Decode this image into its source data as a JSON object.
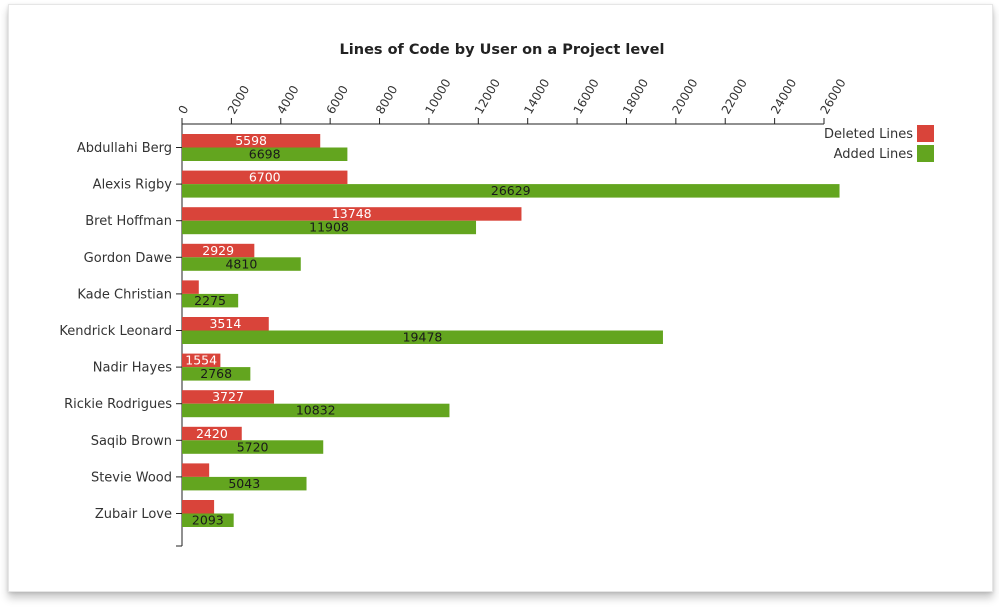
{
  "chart_data": {
    "type": "bar",
    "orientation": "horizontal",
    "title": "Lines of Code by User on a Project level",
    "x_axis_position": "top",
    "xlim": [
      0,
      26000
    ],
    "xticks": [
      0,
      2000,
      4000,
      6000,
      8000,
      10000,
      12000,
      14000,
      16000,
      18000,
      20000,
      22000,
      24000,
      26000
    ],
    "grid": false,
    "legend_position": "top-right",
    "categories": [
      "Abdullahi Berg",
      "Alexis Rigby",
      "Bret Hoffman",
      "Gordon Dawe",
      "Kade Christian",
      "Kendrick Leonard",
      "Nadir Hayes",
      "Rickie Rodrigues",
      "Saqib Brown",
      "Stevie Wood",
      "Zubair Love"
    ],
    "series": [
      {
        "name": "Deleted Lines",
        "color": "#d9443a",
        "values": [
          5598,
          6700,
          13748,
          2929,
          680,
          3514,
          1554,
          3727,
          2420,
          1100,
          1300
        ],
        "labels": [
          "5598",
          "6700",
          "13748",
          "2929",
          "",
          "3514",
          "1554",
          "3727",
          "2420",
          "",
          ""
        ]
      },
      {
        "name": "Added Lines",
        "color": "#63a51f",
        "values": [
          6698,
          26629,
          11908,
          4810,
          2275,
          19478,
          2768,
          10832,
          5720,
          5043,
          2093
        ],
        "labels": [
          "6698",
          "26629",
          "11908",
          "4810",
          "2275",
          "19478",
          "2768",
          "10832",
          "5720",
          "5043",
          "2093"
        ]
      }
    ]
  }
}
